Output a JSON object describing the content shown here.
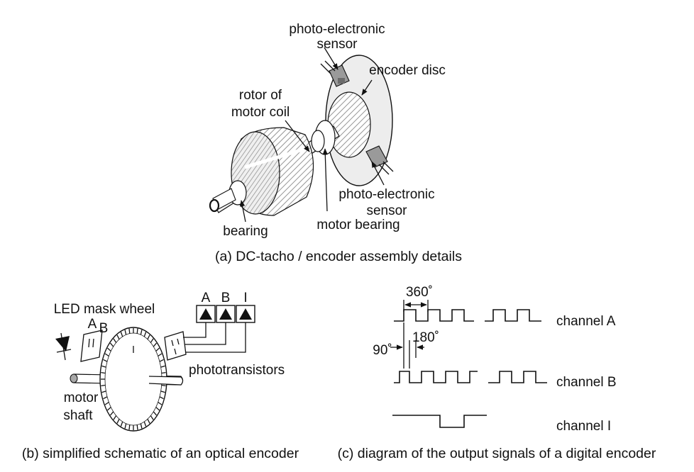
{
  "panel_a": {
    "labels": {
      "sensor_top_line1": "photo-electronic",
      "sensor_top_line2": "sensor",
      "encoder_disc": "encoder disc",
      "rotor_line1": "rotor of",
      "rotor_line2": "motor coil",
      "sensor_bottom_line1": "photo-electronic",
      "sensor_bottom_line2": "sensor",
      "bearing": "bearing",
      "motor_bearing": "motor bearing"
    },
    "caption": "(a) DC-tacho / encoder assembly details"
  },
  "panel_b": {
    "labels": {
      "led_mask_wheel": "LED mask wheel",
      "mask_a": "A",
      "mask_b": "B",
      "channel_a": "A",
      "channel_b": "B",
      "channel_i": "I",
      "phototransistors": "phototransistors",
      "motor": "motor",
      "shaft": "shaft"
    },
    "caption": "(b) simplified schematic of an optical encoder"
  },
  "panel_c": {
    "labels": {
      "period": "360˚",
      "phase": "90˚",
      "half": "180˚",
      "channel_a": "channel A",
      "channel_b": "channel B",
      "channel_i": "channel I"
    },
    "caption": "(c) diagram of the output signals of a digital encoder"
  }
}
